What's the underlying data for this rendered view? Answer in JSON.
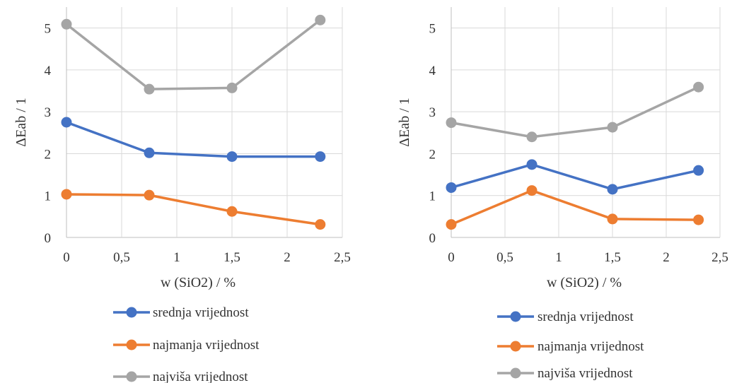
{
  "colors": {
    "srednja": "#4472c4",
    "najmanja": "#ed7d31",
    "najvisa": "#a5a5a5",
    "grid": "#d9d9d9",
    "text": "#333333"
  },
  "chart_data": [
    {
      "type": "line",
      "xlabel": "w (SiO2) / %",
      "ylabel": "ΔEab / 1",
      "xlim": [
        0,
        2.5
      ],
      "ylim": [
        0,
        5.5
      ],
      "x_ticks": [
        0,
        0.5,
        1,
        1.5,
        2,
        2.5
      ],
      "x_tick_labels": [
        "0",
        "0,5",
        "1",
        "1,5",
        "2",
        "2,5"
      ],
      "y_ticks": [
        0,
        1,
        2,
        3,
        4,
        5
      ],
      "y_tick_labels": [
        "0",
        "1",
        "2",
        "3",
        "4",
        "5"
      ],
      "grid": true,
      "legend_position": "bottom",
      "x": [
        0,
        0.75,
        1.5,
        2.3
      ],
      "series": [
        {
          "name": "srednja vrijednost",
          "color": "#4472c4",
          "values": [
            2.75,
            2.02,
            1.93,
            1.93
          ]
        },
        {
          "name": "najmanja vrijednost",
          "color": "#ed7d31",
          "values": [
            1.03,
            1.01,
            0.62,
            0.31
          ]
        },
        {
          "name": "najviša vrijednost",
          "color": "#a5a5a5",
          "values": [
            5.09,
            3.54,
            3.57,
            5.19
          ]
        }
      ]
    },
    {
      "type": "line",
      "xlabel": "w (SiO2) / %",
      "ylabel": "ΔEab / 1",
      "xlim": [
        0,
        2.5
      ],
      "ylim": [
        0,
        5.5
      ],
      "x_ticks": [
        0,
        0.5,
        1,
        1.5,
        2,
        2.5
      ],
      "x_tick_labels": [
        "0",
        "0,5",
        "1",
        "1,5",
        "2",
        "2,5"
      ],
      "y_ticks": [
        0,
        1,
        2,
        3,
        4,
        5
      ],
      "y_tick_labels": [
        "0",
        "1",
        "2",
        "3",
        "4",
        "5"
      ],
      "grid": true,
      "legend_position": "bottom",
      "x": [
        0,
        0.75,
        1.5,
        2.3
      ],
      "series": [
        {
          "name": "srednja vrijednost",
          "color": "#4472c4",
          "values": [
            1.19,
            1.74,
            1.15,
            1.6
          ]
        },
        {
          "name": "najmanja vrijednost",
          "color": "#ed7d31",
          "values": [
            0.31,
            1.12,
            0.44,
            0.42
          ]
        },
        {
          "name": "najviša vrijednost",
          "color": "#a5a5a5",
          "values": [
            2.74,
            2.4,
            2.63,
            3.59
          ]
        }
      ]
    }
  ]
}
